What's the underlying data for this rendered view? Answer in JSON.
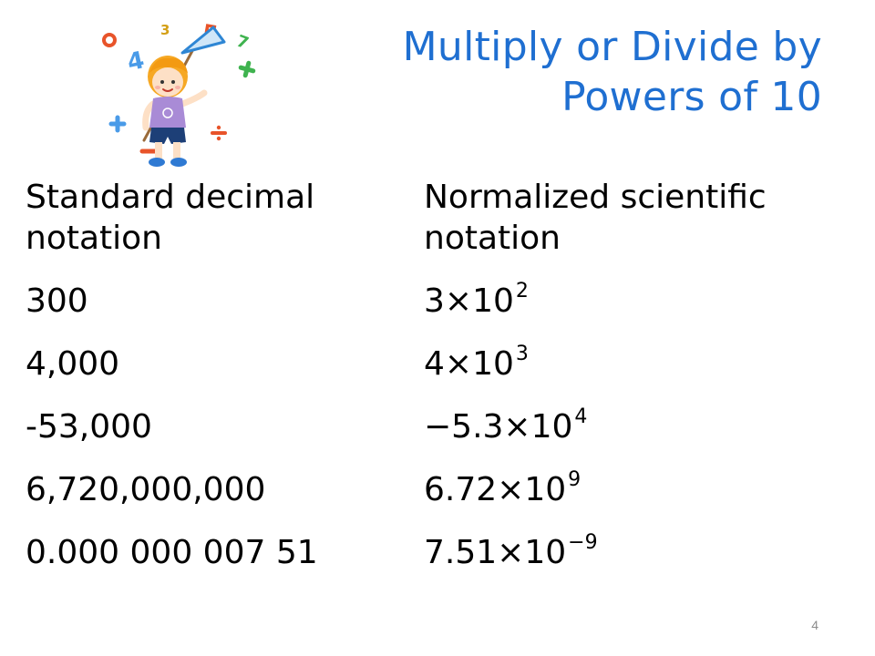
{
  "title": {
    "line1": "Multiply or Divide by",
    "line2": "Powers of 10"
  },
  "table": {
    "headers": {
      "standard": "Standard decimal notation",
      "scientific": "Normalized scientific notation"
    },
    "rows": [
      {
        "standard": "300",
        "coefficient": "3×10",
        "exponent": "2"
      },
      {
        "standard": "4,000",
        "coefficient": "4×10",
        "exponent": "3"
      },
      {
        "standard": "-53,000",
        "coefficient": "−5.3×10",
        "exponent": "4"
      },
      {
        "standard": "6,720,000,000",
        "coefficient": "6.72×10",
        "exponent": "9"
      },
      {
        "standard": "0.000 000 007 51",
        "coefficient": "7.51×10",
        "exponent": "−9"
      }
    ]
  },
  "page_number": "4",
  "colors": {
    "title": "#1f6fd1",
    "body_text": "#000000",
    "page_number": "#8c8c8c"
  },
  "illustration": {
    "icon": "child-with-butterfly-net-and-math-symbols"
  }
}
